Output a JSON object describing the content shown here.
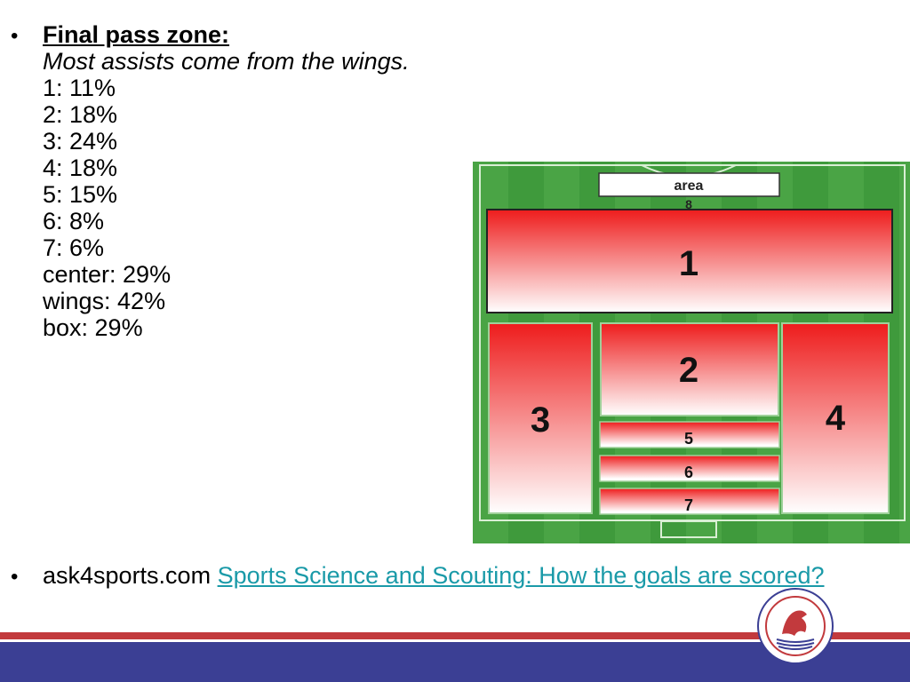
{
  "slide": {
    "bullet_symbol": "•",
    "heading": "Final pass zone:",
    "subheading": "Most assists come from the wings.",
    "stats": [
      "1: 11%",
      "2: 18%",
      "3: 24%",
      "4: 18%",
      "5: 15%",
      "6: 8%",
      "7: 6%",
      "center: 29%",
      "wings: 42%",
      "box: 29%"
    ]
  },
  "diagram": {
    "area_label": "area",
    "area_number": "8",
    "zones": [
      {
        "label": "1"
      },
      {
        "label": "2"
      },
      {
        "label": "3"
      },
      {
        "label": "4"
      },
      {
        "label": "5"
      },
      {
        "label": "6"
      },
      {
        "label": "7"
      }
    ],
    "colors": {
      "grass": "#3f9a3c",
      "zone_red": "#ee1c1c",
      "zone_white": "#ffffff"
    }
  },
  "source": {
    "site": "ask4sports.com",
    "link_text": "Sports Science and Scouting: How the goals are scored?"
  },
  "footer": {
    "stripe_color": "#c23a3d",
    "band_color": "#3b3f94"
  }
}
